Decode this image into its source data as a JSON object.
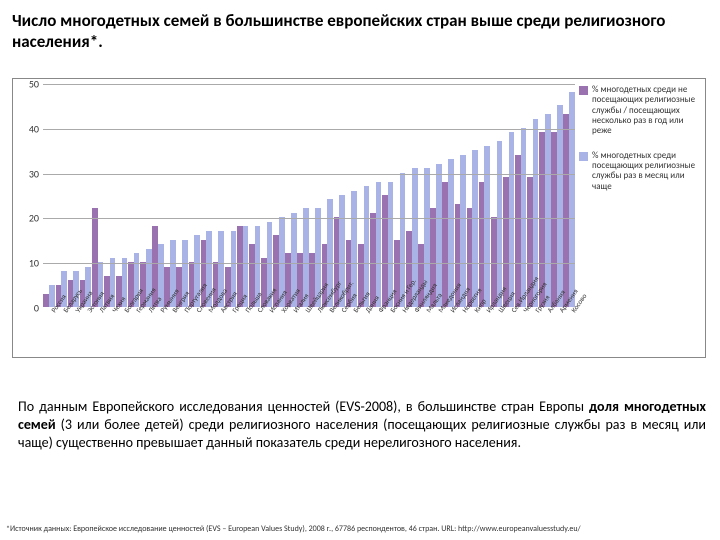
{
  "title": "Число многодетных семей в большинстве европейских стран выше среди религиозного населения*.",
  "chart": {
    "type": "bar",
    "ylim": [
      0,
      50
    ],
    "yticks": [
      0,
      10,
      20,
      30,
      40,
      50
    ],
    "ytick_fontsize": 10,
    "xtick_fontsize": 7,
    "xtick_rotation": -55,
    "grid_color": "#aaaaaa",
    "background_color": "#ffffff",
    "series_a_color": "#9b72b0",
    "series_b_color": "#aab3e6",
    "bar_gap": 0.06,
    "categories": [
      "Россия",
      "Беларусь",
      "Украина",
      "Эстония",
      "Латвия",
      "Чехия",
      "Болгария",
      "Германия",
      "Литва",
      "Румыния",
      "Венгрия",
      "Португалия",
      "Словения",
      "Молдова",
      "Австрия",
      "Греция",
      "Польша",
      "Словакия",
      "Испания",
      "Хорватия",
      "Италия",
      "Швейцария",
      "Люксембург",
      "Великобрит.",
      "Сербия",
      "Бельгия",
      "Дания",
      "Франция",
      "Босния и Гер.",
      "Нидерланды",
      "Финляндия",
      "Мальта",
      "Македония",
      "Исландия",
      "Норвегия",
      "Кипр",
      "Ирландия",
      "Швеция",
      "Сев.Ирландия",
      "Черногория",
      "Грузия",
      "Албания",
      "Армения",
      "Косово"
    ],
    "series_a": {
      "label": "% многодетных среди не посещающих религиозные службы / посещающих несколько раз в год или реже",
      "values": [
        3,
        5,
        6,
        6,
        22,
        7,
        7,
        10,
        10,
        18,
        9,
        9,
        10,
        15,
        10,
        9,
        18,
        14,
        11,
        16,
        12,
        12,
        12,
        14,
        20,
        15,
        14,
        21,
        25,
        15,
        17,
        14,
        22,
        28,
        23,
        22,
        28,
        20,
        29,
        34,
        29,
        39,
        39,
        43
      ]
    },
    "series_b": {
      "label": "% многодетных среди посещающих религиозные службы раз в месяц или чаще",
      "values": [
        5,
        8,
        8,
        9,
        10,
        11,
        11,
        12,
        13,
        14,
        15,
        15,
        16,
        17,
        17,
        17,
        18,
        18,
        19,
        20,
        21,
        22,
        22,
        24,
        25,
        26,
        27,
        28,
        28,
        30,
        31,
        31,
        32,
        33,
        34,
        35,
        36,
        37,
        39,
        40,
        42,
        43,
        45,
        48
      ]
    }
  },
  "body": "По данным Европейского исследования ценностей (EVS-2008), в большинстве стран Европы <b>доля многодетных семей</b> (3 или более детей) среди религиозного населения (посещающих религиозные службы раз в месяц или чаще) существенно превышает данный показатель среди нерелигозного населения.",
  "footnote": "*Источник данных: Европейское исследование ценностей (EVS – European Values Study), 2008 г., 67786 респондентов, 46 стран. URL: http://www.europeanvaluesstudy.eu/"
}
